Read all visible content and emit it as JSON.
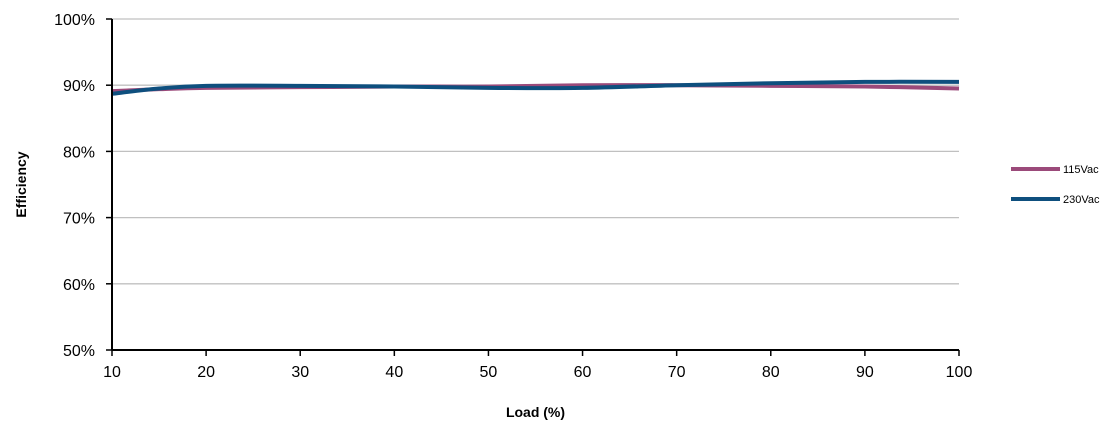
{
  "chart_data": {
    "type": "line",
    "title": "",
    "xlabel": "Load (%)",
    "ylabel": "Efficiency",
    "xlim": [
      10,
      100
    ],
    "ylim": [
      50,
      100
    ],
    "x_ticks": [
      "10",
      "20",
      "30",
      "40",
      "50",
      "60",
      "70",
      "80",
      "90",
      "100"
    ],
    "y_ticks": [
      "50%",
      "60%",
      "70%",
      "80%",
      "90%",
      "100%"
    ],
    "grid": "horizontal",
    "legend_position": "right",
    "x": [
      10,
      15,
      20,
      30,
      40,
      50,
      60,
      70,
      80,
      90,
      100
    ],
    "series": [
      {
        "name": "115Vac",
        "color": "#9b4a7a",
        "values": [
          89.1,
          89.4,
          89.6,
          89.7,
          89.8,
          89.8,
          90.0,
          90.0,
          89.9,
          89.8,
          89.5
        ]
      },
      {
        "name": "230Vac",
        "color": "#0e4f7e",
        "values": [
          88.7,
          89.5,
          89.9,
          89.9,
          89.8,
          89.6,
          89.6,
          90.0,
          90.3,
          90.5,
          90.5
        ]
      }
    ]
  }
}
